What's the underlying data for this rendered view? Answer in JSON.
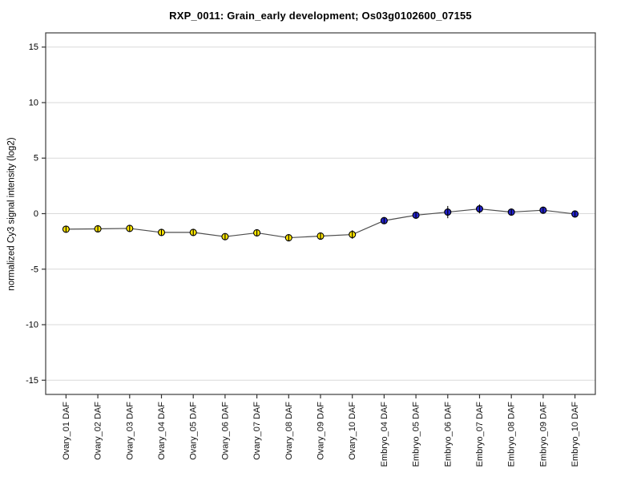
{
  "chart_data": {
    "type": "line",
    "title": "RXP_0011: Grain_early development; Os03g0102600_07155",
    "ylabel": "normalized Cy3 signal intensity (log2)",
    "xlabel": "",
    "ylim": [
      -16.28,
      16.28
    ],
    "yticks": [
      15,
      10,
      5,
      0,
      -5,
      -10,
      -15
    ],
    "grid": "horizontal-lines-at-yticks",
    "legend_position": "none",
    "categories": [
      "Ovary_01 DAF",
      "Ovary_02 DAF",
      "Ovary_03 DAF",
      "Ovary_04 DAF",
      "Ovary_05 DAF",
      "Ovary_06 DAF",
      "Ovary_07 DAF",
      "Ovary_08 DAF",
      "Ovary_09 DAF",
      "Ovary_10 DAF",
      "Embryo_04 DAF",
      "Embryo_05 DAF",
      "Embryo_06 DAF",
      "Embryo_07 DAF",
      "Embryo_08 DAF",
      "Embryo_09 DAF",
      "Embryo_10 DAF"
    ],
    "series": [
      {
        "name": "Ovary",
        "marker": "circle",
        "marker_color": "#ffe600",
        "start_index": 0,
        "values": [
          -1.4,
          -1.37,
          -1.33,
          -1.69,
          -1.69,
          -2.07,
          -1.73,
          -2.17,
          -2.02,
          -1.88
        ],
        "errors": [
          0.28,
          0.3,
          0.28,
          0.28,
          0.3,
          0.25,
          0.3,
          0.28,
          0.28,
          0.38
        ]
      },
      {
        "name": "Embryo",
        "marker": "circle",
        "marker_color": "#2222cc",
        "start_index": 10,
        "values": [
          -0.63,
          -0.14,
          0.14,
          0.43,
          0.14,
          0.31,
          -0.03
        ],
        "errors": [
          0.3,
          0.25,
          0.55,
          0.4,
          0.25,
          0.28,
          0.25
        ]
      }
    ],
    "colors": {
      "line": "#4d4d4d",
      "grid": "#d9d9d9",
      "frame": "#3c3c3c",
      "tick": "#333333",
      "error_bar": "#000000",
      "marker_outline": "#000000",
      "text": "#000000"
    }
  }
}
